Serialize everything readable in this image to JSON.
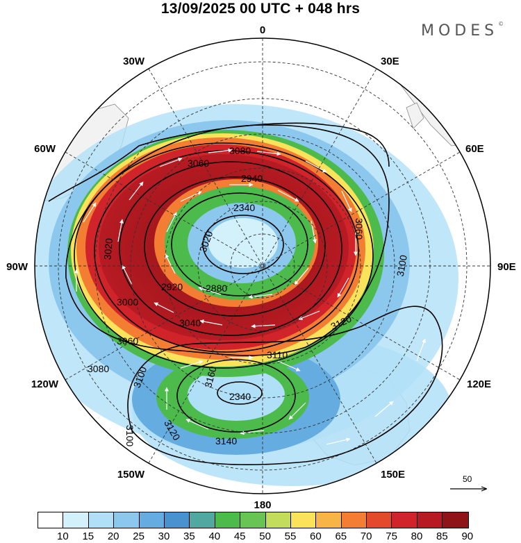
{
  "header": {
    "title": "13/09/2025  00 UTC  + 048 hrs",
    "brand": "MODES",
    "brand_mark": "©"
  },
  "map": {
    "projection": "south-polar-stereographic",
    "longitude_labels": {
      "lon_0": "0",
      "lon_30e": "30E",
      "lon_60e": "60E",
      "lon_90e": "90E",
      "lon_120e": "120E",
      "lon_150e": "150E",
      "lon_180": "180",
      "lon_150w": "150W",
      "lon_120w": "120W",
      "lon_90w": "90W",
      "lon_60w": "60W",
      "lon_30w": "30W"
    },
    "contour_labels": [
      "3080",
      "3060",
      "2940",
      "2340",
      "3020",
      "2880",
      "2920",
      "3000",
      "3040",
      "3060",
      "3080",
      "3100",
      "3120",
      "3110",
      "3100",
      "3160",
      "2340",
      "3140",
      "3120",
      "3060",
      "3100",
      "3020"
    ],
    "vector_reference": "50",
    "land_color": "#f2f2f2",
    "contour_color": "#000000"
  },
  "colorbar": {
    "colors": [
      "#ffffff",
      "#d2f1fb",
      "#b0e0f8",
      "#8cc8ee",
      "#65ace1",
      "#4a92cf",
      "#50a8a0",
      "#4cbb4c",
      "#68c454",
      "#c4dc5c",
      "#fae25a",
      "#f7b447",
      "#f27d33",
      "#e3492a",
      "#d0232a",
      "#b71a22",
      "#8f1418"
    ],
    "ticks": [
      "10",
      "15",
      "20",
      "25",
      "30",
      "35",
      "40",
      "45",
      "50",
      "55",
      "60",
      "65",
      "70",
      "75",
      "80",
      "85",
      "90"
    ]
  }
}
